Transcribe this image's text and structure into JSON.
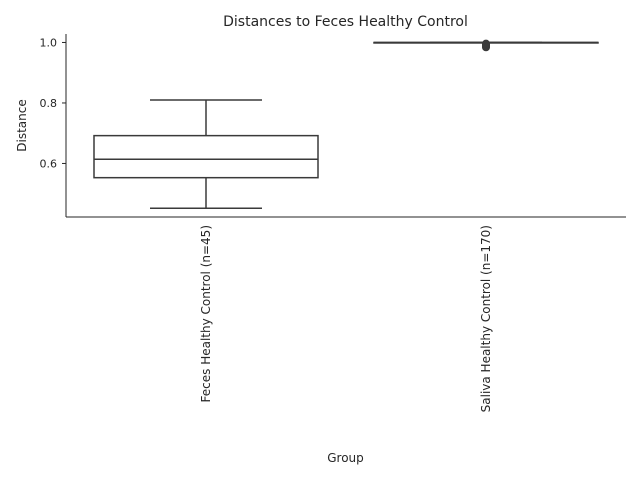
{
  "chart_data": {
    "type": "box",
    "title": "Distances to Feces Healthy Control",
    "xlabel": "Group",
    "ylabel": "Distance",
    "ylim": [
      0.423,
      1.028
    ],
    "yticks": [
      "0.6",
      "0.8",
      "1.0"
    ],
    "ytick_values": [
      0.6,
      0.8,
      1.0
    ],
    "grid": false,
    "categories": [
      "Feces Healthy Control (n=45)",
      "Saliva Healthy Control (n=170)"
    ],
    "boxes": [
      {
        "whisker_low": 0.452,
        "q1": 0.553,
        "median": 0.614,
        "q3": 0.692,
        "whisker_high": 0.81,
        "outliers": []
      },
      {
        "whisker_low": 1.0,
        "q1": 1.0,
        "median": 1.0,
        "q3": 1.0,
        "whisker_high": 1.0,
        "outliers": [
          0.984,
          0.987,
          0.99,
          0.993,
          0.996
        ]
      }
    ],
    "colors": {
      "line": "#3a3a3a",
      "box_fill": "#ffffff",
      "axis": "#262626"
    }
  }
}
